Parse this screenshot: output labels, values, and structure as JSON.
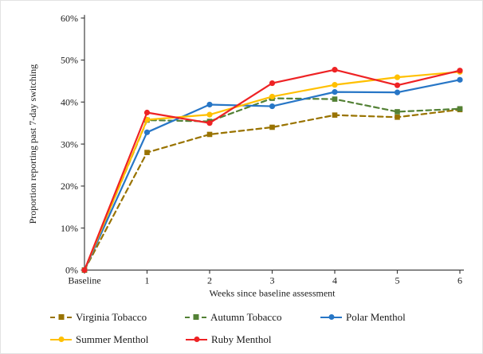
{
  "chart_data": {
    "type": "line",
    "title": "",
    "xlabel": "Weeks since baseline assessment",
    "ylabel": "Proportion reporting past 7-day switching",
    "categories": [
      "Baseline",
      "1",
      "2",
      "3",
      "4",
      "5",
      "6"
    ],
    "y_ticks": [
      "0%",
      "10%",
      "20%",
      "30%",
      "40%",
      "50%",
      "60%"
    ],
    "ylim": [
      0,
      60
    ],
    "grid": false,
    "legend_position": "bottom",
    "axis_color": "#404040",
    "series": [
      {
        "name": "Virginia Tobacco",
        "color": "#997300",
        "dash": true,
        "marker": "square",
        "values": [
          0,
          28.0,
          32.3,
          34.0,
          36.9,
          36.4,
          38.2
        ]
      },
      {
        "name": "Autumn Tobacco",
        "color": "#538135",
        "dash": true,
        "marker": "square",
        "values": [
          0,
          35.7,
          35.4,
          40.9,
          40.7,
          37.7,
          38.4
        ]
      },
      {
        "name": "Polar Menthol",
        "color": "#2776C6",
        "dash": false,
        "marker": "circle",
        "values": [
          0,
          32.8,
          39.4,
          39.0,
          42.4,
          42.3,
          45.3
        ]
      },
      {
        "name": "Summer Menthol",
        "color": "#FFC000",
        "dash": false,
        "marker": "circle",
        "values": [
          0,
          35.8,
          37.0,
          41.3,
          44.1,
          45.9,
          47.2
        ]
      },
      {
        "name": "Ruby Menthol",
        "color": "#EE2224",
        "dash": false,
        "marker": "circle",
        "values": [
          0,
          37.5,
          35.0,
          44.5,
          47.7,
          44.0,
          47.5
        ]
      }
    ]
  }
}
